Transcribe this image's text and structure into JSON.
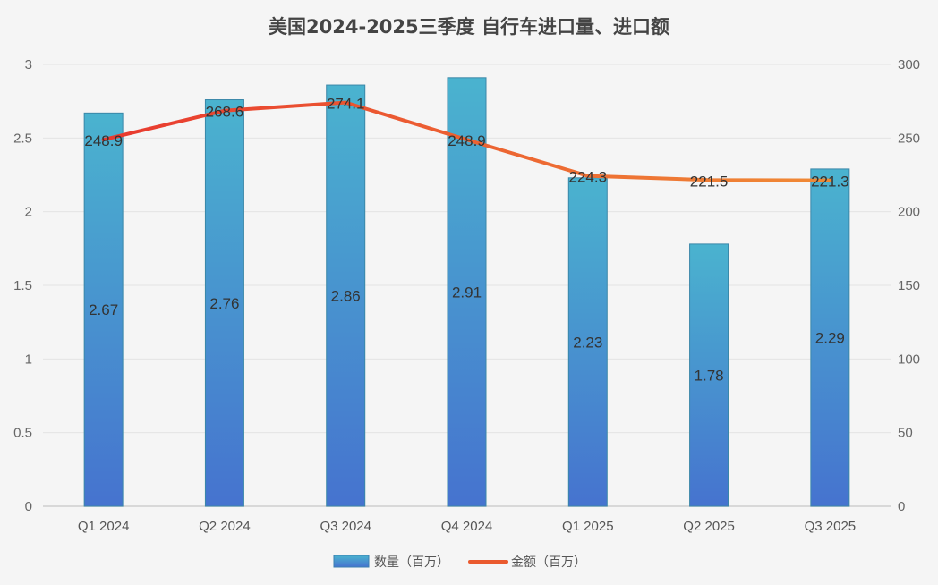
{
  "chart_data": {
    "type": "bar+line",
    "title": "美国2024-2025三季度 自行车进口量、进口额",
    "categories": [
      "Q1 2024",
      "Q2 2024",
      "Q3 2024",
      "Q4 2024",
      "Q1 2025",
      "Q2 2025",
      "Q3 2025"
    ],
    "series": [
      {
        "name": "数量（百万）",
        "type": "bar",
        "axis": "left",
        "values": [
          2.67,
          2.76,
          2.86,
          2.91,
          2.23,
          1.78,
          2.29
        ],
        "labels": [
          "2.67",
          "2.76",
          "2.86",
          "2.91",
          "2.23",
          "1.78",
          "2.29"
        ],
        "color_top": "#4ab3cf",
        "color_bottom": "#4673cf"
      },
      {
        "name": "金额（百万）",
        "type": "line",
        "axis": "right",
        "values": [
          248.9,
          268.6,
          274.1,
          248.9,
          224.3,
          221.5,
          221.3
        ],
        "labels": [
          "248.9",
          "268.6",
          "274.1",
          "248.9",
          "224.3",
          "221.5",
          "221.3"
        ],
        "color_start": "#e8392f",
        "color_end": "#f08a35"
      }
    ],
    "y_left": {
      "min": 0,
      "max": 3,
      "ticks": [
        "0",
        "0.5",
        "1",
        "1.5",
        "2",
        "2.5",
        "3"
      ]
    },
    "y_right": {
      "min": 0,
      "max": 300,
      "ticks": [
        "0",
        "50",
        "100",
        "150",
        "200",
        "250",
        "300"
      ]
    },
    "grid": true,
    "legend": "bottom-center"
  }
}
